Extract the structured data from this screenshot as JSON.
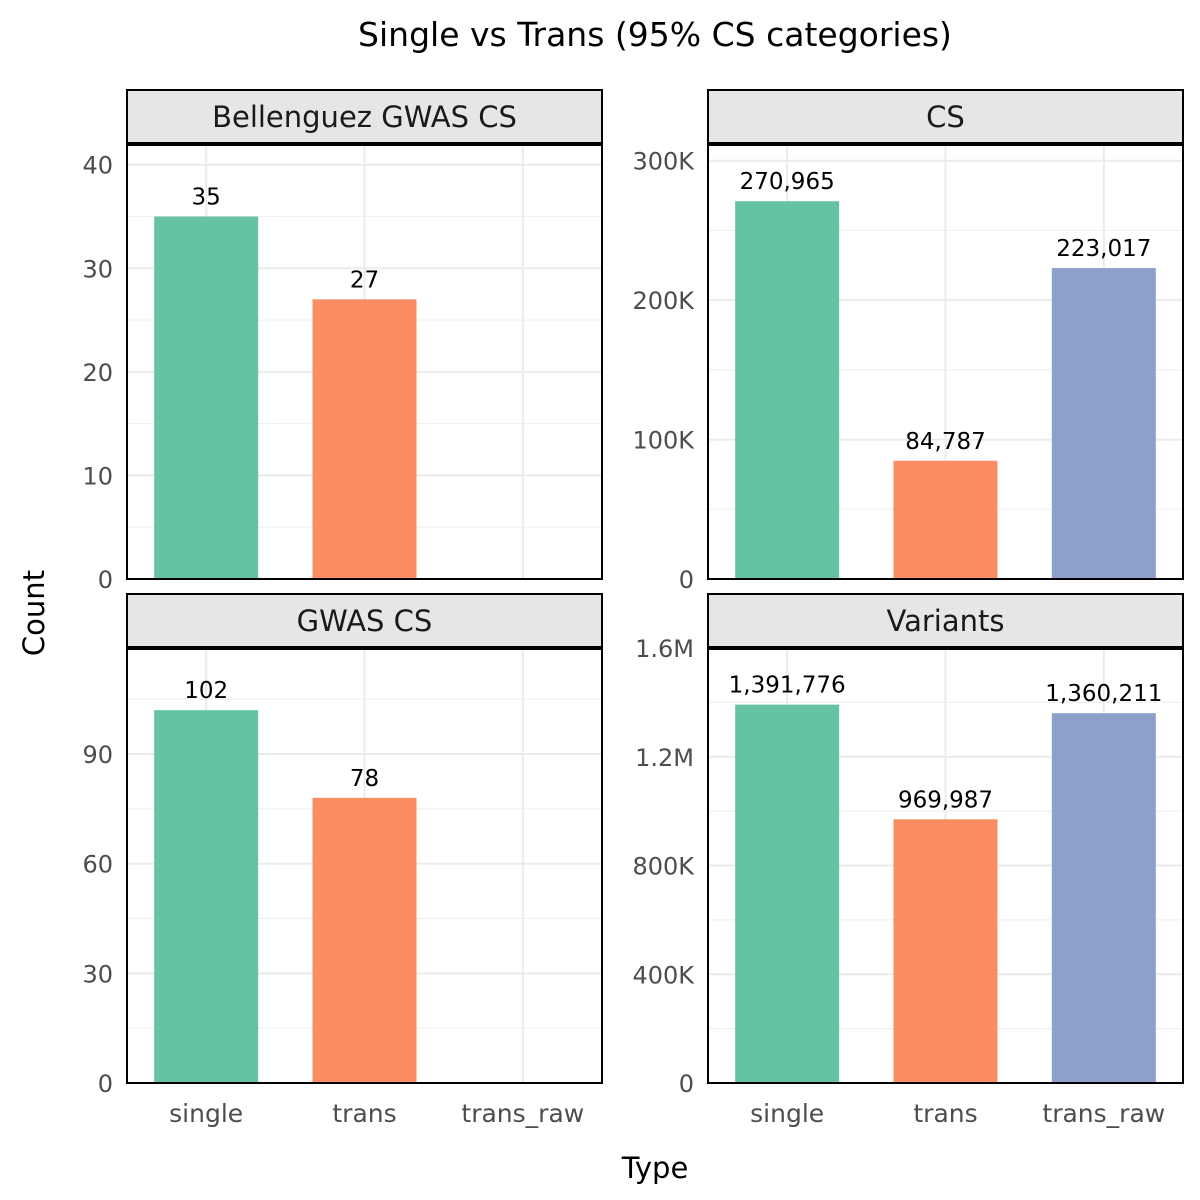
{
  "chart_data": {
    "type": "bar",
    "title": "Single vs Trans (95% CS categories)",
    "xlabel": "Type",
    "ylabel": "Count",
    "categories": [
      "single",
      "trans",
      "trans_raw"
    ],
    "colors": {
      "single": "#66c2a5",
      "trans": "#fc8d62",
      "trans_raw": "#8da0cb"
    },
    "grid": true,
    "legend": "none",
    "panels": [
      {
        "name": "Bellenguez GWAS CS",
        "values": [
          35,
          27,
          null
        ],
        "labels": [
          "35",
          "27",
          ""
        ],
        "ylim": [
          0,
          42
        ],
        "yticks": [
          0,
          10,
          20,
          30,
          40
        ],
        "ytick_labels": [
          "0",
          "10",
          "20",
          "30",
          "40"
        ]
      },
      {
        "name": "CS",
        "values": [
          270965,
          84787,
          223017
        ],
        "labels": [
          "270,965",
          "84,787",
          "223,017"
        ],
        "ylim": [
          0,
          312000
        ],
        "yticks": [
          0,
          100000,
          200000,
          300000
        ],
        "ytick_labels": [
          "0",
          "100K",
          "200K",
          "300K"
        ]
      },
      {
        "name": "GWAS CS",
        "values": [
          102,
          78,
          null
        ],
        "labels": [
          "102",
          "78",
          ""
        ],
        "ylim": [
          0,
          119
        ],
        "yticks": [
          0,
          30,
          60,
          90
        ],
        "ytick_labels": [
          "0",
          "30",
          "60",
          "90"
        ]
      },
      {
        "name": "Variants",
        "values": [
          1391776,
          969987,
          1360211
        ],
        "labels": [
          "1,391,776",
          "969,987",
          "1,360,211"
        ],
        "ylim": [
          0,
          1600000
        ],
        "yticks": [
          0,
          400000,
          800000,
          1200000,
          1600000
        ],
        "ytick_labels": [
          "0",
          "400K",
          "800K",
          "1.2M",
          "1.6M"
        ]
      }
    ]
  }
}
